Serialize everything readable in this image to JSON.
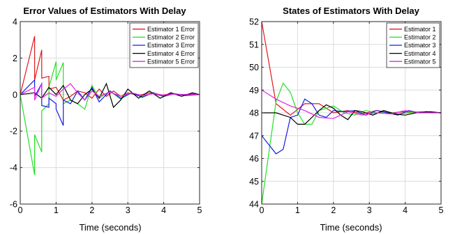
{
  "chart_data": [
    {
      "type": "line",
      "title": "Error Values of Estimators With Delay",
      "xlabel": "Time (seconds)",
      "ylabel": "",
      "xlim": [
        0,
        5
      ],
      "ylim": [
        -6,
        4
      ],
      "xticks": [
        0,
        1,
        2,
        3,
        4,
        5
      ],
      "yticks": [
        -6,
        -4,
        -2,
        0,
        2,
        4
      ],
      "grid": true,
      "legend": "top-right",
      "series": [
        {
          "name": "Estimator 1 Error",
          "color": "#e0191c",
          "x": [
            0,
            0.4,
            0.4,
            0.6,
            0.6,
            0.8,
            0.8,
            1.0,
            1.2,
            1.4,
            1.6,
            1.8,
            2.0,
            2.2,
            2.4,
            2.6,
            2.8,
            3.0,
            3.3,
            3.6,
            3.9,
            4.2,
            4.5,
            4.8,
            5.0
          ],
          "y": [
            0,
            3.2,
            0.8,
            2.45,
            0.9,
            1.0,
            0.3,
            0.4,
            -0.3,
            -0.1,
            0.2,
            0.1,
            -0.2,
            0.3,
            -0.1,
            0.2,
            -0.1,
            0.1,
            -0.05,
            0.1,
            -0.05,
            0.05,
            -0.02,
            0.05,
            0
          ]
        },
        {
          "name": "Estimator 2 Error",
          "color": "#22e022",
          "x": [
            0,
            0.4,
            0.4,
            0.6,
            0.6,
            0.8,
            0.8,
            1.0,
            1.0,
            1.2,
            1.2,
            1.4,
            1.6,
            1.8,
            2.0,
            2.2,
            2.5,
            2.8,
            3.1,
            3.4,
            3.7,
            4.0,
            4.3,
            4.6,
            5.0
          ],
          "y": [
            0,
            -4.4,
            -2.2,
            -3.15,
            -0.9,
            -0.5,
            0.4,
            1.8,
            0.8,
            1.75,
            -0.5,
            -0.3,
            -0.5,
            -0.8,
            0.5,
            -0.2,
            0.2,
            -0.25,
            0.1,
            -0.1,
            0.1,
            -0.05,
            0.05,
            -0.03,
            0
          ]
        },
        {
          "name": "Estimator 3 Error",
          "color": "#1a1ae0",
          "x": [
            0,
            0.4,
            0.4,
            0.6,
            0.6,
            0.8,
            0.8,
            1.0,
            1.0,
            1.2,
            1.2,
            1.4,
            1.6,
            1.8,
            2.0,
            2.2,
            2.5,
            2.8,
            3.1,
            3.4,
            3.7,
            4.0,
            4.3,
            4.6,
            5.0
          ],
          "y": [
            0,
            0.8,
            -0.1,
            0.6,
            -0.6,
            -0.7,
            -0.2,
            -0.5,
            -0.8,
            -1.7,
            -0.3,
            -0.5,
            0.2,
            -0.3,
            0.4,
            -0.4,
            0.2,
            -0.2,
            0.1,
            -0.15,
            0.1,
            -0.1,
            0.05,
            -0.05,
            0
          ]
        },
        {
          "name": "Estimator 4 Error",
          "color": "#000000",
          "x": [
            0,
            0.4,
            0.6,
            0.8,
            1.0,
            1.2,
            1.4,
            1.6,
            1.8,
            2.0,
            2.2,
            2.4,
            2.6,
            2.8,
            3.0,
            3.3,
            3.6,
            3.9,
            4.2,
            4.5,
            4.8,
            5.0
          ],
          "y": [
            0,
            0.1,
            -0.2,
            0.4,
            0.0,
            0.5,
            -0.3,
            -0.5,
            0.0,
            0.3,
            -0.2,
            0.6,
            -0.7,
            -0.3,
            0.3,
            -0.2,
            0.2,
            -0.2,
            0.1,
            -0.1,
            0.1,
            0
          ]
        },
        {
          "name": "Estimator 5 Error",
          "color": "#e622e6",
          "x": [
            0,
            0.4,
            0.4,
            0.6,
            0.6,
            0.8,
            1.0,
            1.2,
            1.4,
            1.6,
            1.8,
            2.0,
            2.2,
            2.5,
            2.8,
            3.1,
            3.4,
            3.7,
            4.0,
            4.3,
            4.6,
            5.0
          ],
          "y": [
            0,
            0.4,
            -0.3,
            0.6,
            -0.2,
            0.1,
            -0.1,
            0.3,
            0.6,
            0.1,
            -0.3,
            0.2,
            -0.1,
            0.15,
            -0.1,
            0.1,
            -0.05,
            0.05,
            -0.03,
            0.03,
            0,
            0
          ]
        }
      ]
    },
    {
      "type": "line",
      "title": "States of Estimators With Delay",
      "xlabel": "Time (seconds)",
      "ylabel": "",
      "xlim": [
        0,
        5
      ],
      "ylim": [
        44,
        52
      ],
      "xticks": [
        0,
        1,
        2,
        3,
        4,
        5
      ],
      "yticks": [
        44,
        45,
        46,
        47,
        48,
        49,
        50,
        51,
        52
      ],
      "grid": true,
      "legend": "top-right",
      "series": [
        {
          "name": "Estimator 1",
          "color": "#e0191c",
          "x": [
            0,
            0.4,
            0.8,
            1.2,
            1.6,
            2.0,
            2.4,
            2.8,
            3.2,
            3.6,
            4.0,
            4.4,
            4.8,
            5.0
          ],
          "y": [
            52.0,
            48.4,
            47.9,
            48.4,
            48.4,
            48.0,
            48.1,
            47.95,
            48.1,
            48.0,
            48.05,
            48.0,
            48.02,
            48.0
          ]
        },
        {
          "name": "Estimator 2",
          "color": "#22e022",
          "x": [
            0,
            0.4,
            0.6,
            0.8,
            1.0,
            1.2,
            1.4,
            1.6,
            1.8,
            2.0,
            2.3,
            2.6,
            2.9,
            3.2,
            3.5,
            3.8,
            4.1,
            4.4,
            4.7,
            5.0
          ],
          "y": [
            44.0,
            48.5,
            49.3,
            48.9,
            48.0,
            47.5,
            47.5,
            48.1,
            48.2,
            48.3,
            48.0,
            47.9,
            48.1,
            48.0,
            48.05,
            47.95,
            48.0,
            48.05,
            48.0,
            48.0
          ]
        },
        {
          "name": "Estimator 3",
          "color": "#1a1ae0",
          "x": [
            0,
            0.4,
            0.6,
            0.8,
            1.0,
            1.2,
            1.4,
            1.6,
            1.8,
            2.0,
            2.3,
            2.6,
            2.9,
            3.2,
            3.5,
            3.8,
            4.1,
            4.4,
            4.7,
            5.0
          ],
          "y": [
            47.0,
            46.2,
            46.4,
            47.8,
            47.9,
            48.6,
            48.4,
            47.9,
            47.8,
            48.1,
            48.05,
            48.1,
            47.9,
            48.1,
            48.0,
            47.9,
            48.1,
            48.0,
            48.05,
            48.0
          ]
        },
        {
          "name": "Estimator 4",
          "color": "#000000",
          "x": [
            0,
            0.4,
            0.8,
            1.0,
            1.2,
            1.6,
            1.8,
            2.0,
            2.2,
            2.4,
            2.6,
            2.8,
            3.1,
            3.4,
            3.7,
            4.0,
            4.3,
            4.6,
            5.0
          ],
          "y": [
            48.0,
            48.0,
            47.8,
            47.5,
            47.5,
            48.1,
            48.35,
            48.2,
            47.9,
            47.7,
            48.1,
            48.05,
            47.9,
            48.1,
            47.95,
            47.9,
            48.0,
            48.05,
            48.0
          ]
        },
        {
          "name": "Estimator 5",
          "color": "#e622e6",
          "x": [
            0,
            0.4,
            0.8,
            1.2,
            1.6,
            2.0,
            2.4,
            2.8,
            3.2,
            3.6,
            4.0,
            4.4,
            4.8,
            5.0
          ],
          "y": [
            49.0,
            48.6,
            48.3,
            48.1,
            47.8,
            47.75,
            48.05,
            47.9,
            48.0,
            47.95,
            48.1,
            48.0,
            48.0,
            48.0
          ]
        }
      ]
    }
  ]
}
